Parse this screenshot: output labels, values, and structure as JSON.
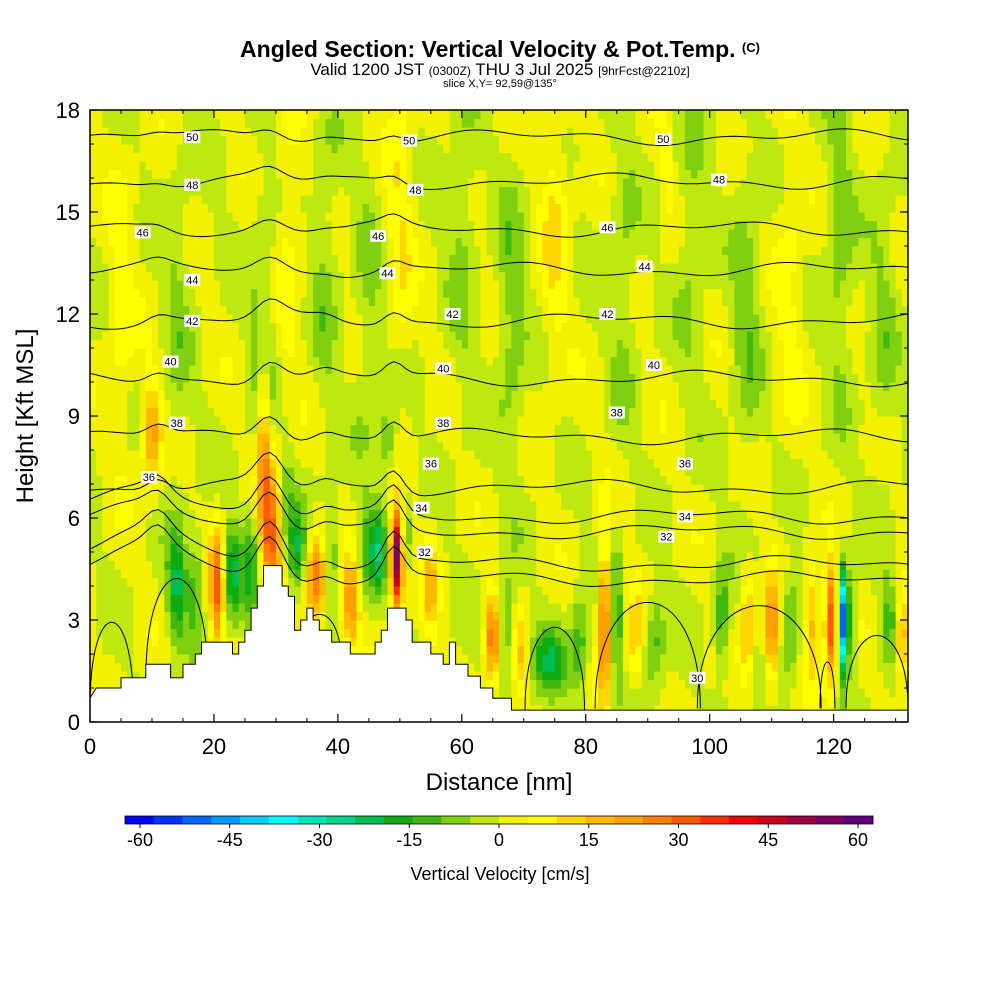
{
  "chart_data": {
    "type": "heatmap",
    "title": "Angled Section: Vertical Velocity & Pot.Temp.",
    "title_suffix": "(C)",
    "subtitle_main": "Valid 1200 JST",
    "subtitle_utc": "(0300Z)",
    "subtitle_date": "THU 3 Jul 2025",
    "subtitle_fcst": "[9hrFcst@2210z]",
    "subtitle2": "slice X,Y= 92,59@135°",
    "xlabel": "Distance [nm]",
    "ylabel": "Height [Kft MSL]",
    "xlim": [
      0,
      132
    ],
    "ylim": [
      0,
      18
    ],
    "x_ticks": [
      0,
      20,
      40,
      60,
      80,
      100,
      120
    ],
    "y_ticks": [
      0,
      3,
      6,
      9,
      12,
      15,
      18
    ],
    "colorbar": {
      "label": "Vertical Velocity [cm/s]",
      "ticks": [
        -60,
        -45,
        -30,
        -15,
        0,
        15,
        30,
        45,
        60
      ],
      "range": [
        -62.5,
        62.5
      ],
      "step": 5,
      "colors": [
        "#0000ff",
        "#0033ff",
        "#0066ff",
        "#0099ff",
        "#00ccff",
        "#00ffff",
        "#00e6b8",
        "#00d38a",
        "#00bd50",
        "#10ab10",
        "#40b810",
        "#80d010",
        "#bfe810",
        "#f2f200",
        "#ffff00",
        "#ffd700",
        "#ffb800",
        "#ff9f00",
        "#ff7f00",
        "#ff5a00",
        "#ff2b00",
        "#ee0000",
        "#c80020",
        "#a00040",
        "#800060",
        "#600080"
      ]
    },
    "contours": {
      "variable": "potential temperature",
      "levels": [
        30,
        32,
        34,
        36,
        38,
        40,
        42,
        44,
        46,
        48,
        50
      ],
      "labels": [
        {
          "text": "50",
          "x": 16.5,
          "y": 17.2
        },
        {
          "text": "50",
          "x": 51.5,
          "y": 17.1
        },
        {
          "text": "50",
          "x": 92.5,
          "y": 17.15
        },
        {
          "text": "48",
          "x": 16.5,
          "y": 15.8
        },
        {
          "text": "48",
          "x": 52.5,
          "y": 15.65
        },
        {
          "text": "48",
          "x": 101.5,
          "y": 15.95
        },
        {
          "text": "46",
          "x": 8.5,
          "y": 14.4
        },
        {
          "text": "46",
          "x": 46.5,
          "y": 14.3
        },
        {
          "text": "46",
          "x": 83.5,
          "y": 14.55
        },
        {
          "text": "44",
          "x": 16.5,
          "y": 13.0
        },
        {
          "text": "44",
          "x": 48.0,
          "y": 13.2
        },
        {
          "text": "44",
          "x": 89.5,
          "y": 13.4
        },
        {
          "text": "42",
          "x": 16.5,
          "y": 11.8
        },
        {
          "text": "42",
          "x": 58.5,
          "y": 12.0
        },
        {
          "text": "42",
          "x": 83.5,
          "y": 12.0
        },
        {
          "text": "40",
          "x": 13.0,
          "y": 10.6
        },
        {
          "text": "40",
          "x": 57.0,
          "y": 10.4
        },
        {
          "text": "40",
          "x": 91.0,
          "y": 10.5
        },
        {
          "text": "38",
          "x": 14.0,
          "y": 8.8
        },
        {
          "text": "38",
          "x": 57.0,
          "y": 8.8
        },
        {
          "text": "38",
          "x": 85.0,
          "y": 9.1
        },
        {
          "text": "36",
          "x": 9.5,
          "y": 7.2
        },
        {
          "text": "36",
          "x": 55.0,
          "y": 7.6
        },
        {
          "text": "36",
          "x": 96.0,
          "y": 7.6
        },
        {
          "text": "34",
          "x": 53.5,
          "y": 6.3
        },
        {
          "text": "34",
          "x": 96.0,
          "y": 6.05
        },
        {
          "text": "32",
          "x": 54.0,
          "y": 5.0
        },
        {
          "text": "32",
          "x": 93.0,
          "y": 5.45
        },
        {
          "text": "30",
          "x": 98.0,
          "y": 1.3
        }
      ]
    },
    "terrain": [
      [
        0,
        0.7
      ],
      [
        1,
        1.0
      ],
      [
        5,
        1.0
      ],
      [
        5,
        1.3
      ],
      [
        9,
        1.3
      ],
      [
        9,
        1.7
      ],
      [
        13,
        1.7
      ],
      [
        13,
        1.3
      ],
      [
        15,
        1.3
      ],
      [
        15,
        1.7
      ],
      [
        17,
        1.7
      ],
      [
        17,
        2.0
      ],
      [
        18,
        2.0
      ],
      [
        18,
        2.35
      ],
      [
        23,
        2.35
      ],
      [
        23,
        2.0
      ],
      [
        24,
        2.0
      ],
      [
        24,
        2.35
      ],
      [
        25,
        2.35
      ],
      [
        25,
        2.7
      ],
      [
        26,
        2.7
      ],
      [
        26,
        3.35
      ],
      [
        27,
        3.35
      ],
      [
        27,
        4.0
      ],
      [
        28,
        4.0
      ],
      [
        28,
        4.6
      ],
      [
        31,
        4.6
      ],
      [
        31,
        4.0
      ],
      [
        32,
        4.0
      ],
      [
        32,
        3.7
      ],
      [
        33,
        3.7
      ],
      [
        33,
        2.7
      ],
      [
        34,
        2.7
      ],
      [
        34,
        3.0
      ],
      [
        35,
        3.0
      ],
      [
        35,
        3.35
      ],
      [
        36,
        3.35
      ],
      [
        36,
        3.0
      ],
      [
        37,
        3.0
      ],
      [
        37,
        2.7
      ],
      [
        39,
        2.7
      ],
      [
        39,
        2.35
      ],
      [
        42,
        2.35
      ],
      [
        42,
        2.0
      ],
      [
        46,
        2.0
      ],
      [
        46,
        2.35
      ],
      [
        47,
        2.35
      ],
      [
        47,
        2.7
      ],
      [
        48,
        2.7
      ],
      [
        48,
        3.35
      ],
      [
        51,
        3.35
      ],
      [
        51,
        3.0
      ],
      [
        52,
        3.0
      ],
      [
        52,
        2.35
      ],
      [
        55,
        2.35
      ],
      [
        55,
        2.0
      ],
      [
        57,
        2.0
      ],
      [
        57,
        1.7
      ],
      [
        58,
        1.7
      ],
      [
        58,
        2.35
      ],
      [
        59,
        2.35
      ],
      [
        59,
        1.7
      ],
      [
        61,
        1.7
      ],
      [
        61,
        1.35
      ],
      [
        63,
        1.35
      ],
      [
        63,
        1.0
      ],
      [
        65,
        1.0
      ],
      [
        65,
        0.7
      ],
      [
        68,
        0.7
      ],
      [
        68,
        0.35
      ],
      [
        132,
        0.35
      ]
    ]
  }
}
